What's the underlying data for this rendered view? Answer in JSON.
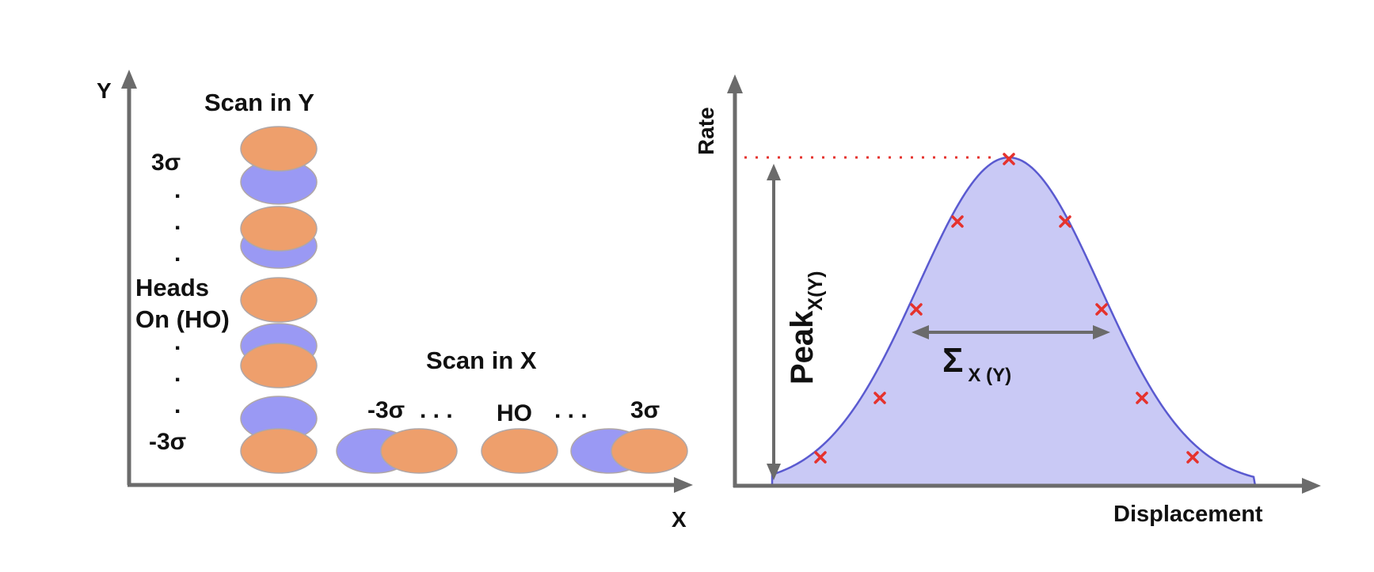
{
  "colors": {
    "axis": "#6b6b6b",
    "orange": "#ee9f6c",
    "blue": "#9a99f4",
    "curve_fill": "#c9c9f5",
    "curve_stroke": "#5a5ad0",
    "marker": "#e5322d",
    "text": "#111111"
  },
  "left_panel": {
    "axis_y_label": "Y",
    "axis_x_label": "X",
    "scan_y_title": "Scan in Y",
    "scan_x_title": "Scan in X",
    "y_top_label": "3σ",
    "y_bottom_label": "-3σ",
    "heads_on_line1": "Heads",
    "heads_on_line2": "On (HO)",
    "x_left_label": "-3σ",
    "x_center_label": "HO",
    "x_right_label": "3σ",
    "x_dots": ". . .",
    "y_dot": "."
  },
  "right_panel": {
    "y_axis_label": "Rate",
    "x_axis_label": "Displacement",
    "peak_label": "Peak",
    "peak_subscript": "X(Y)",
    "sigma_label": "Σ",
    "sigma_subscript": "X (Y)"
  }
}
